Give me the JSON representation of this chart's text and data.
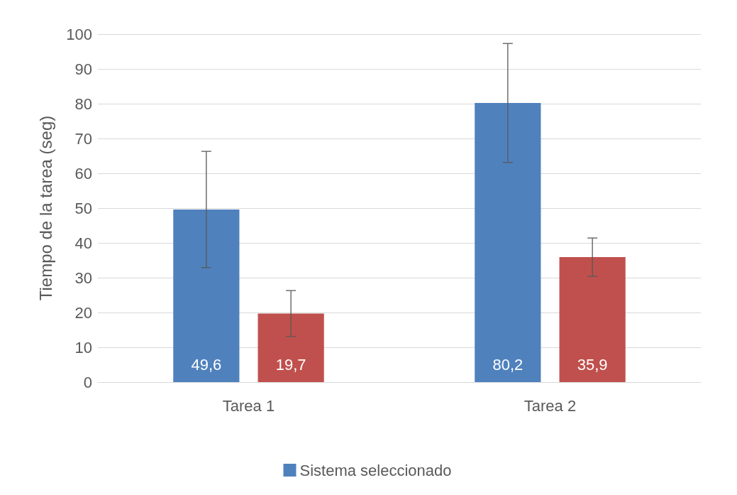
{
  "chart_data": {
    "type": "bar",
    "ylabel": "Tiempo de la tarea (seg)",
    "categories": [
      "Tarea 1",
      "Tarea 2"
    ],
    "series": [
      {
        "name": "Sistema seleccionado",
        "color": "#4f81bd",
        "values": [
          49.6,
          80.2
        ],
        "errors": [
          16.7,
          17.1
        ],
        "value_labels": [
          "49,6",
          "80,2"
        ]
      },
      {
        "color": "#c0504d",
        "values": [
          19.7,
          35.9
        ],
        "errors": [
          6.6,
          5.5
        ],
        "value_labels": [
          "19,7",
          "35,9"
        ]
      }
    ],
    "ylim": [
      0,
      100
    ],
    "yticks": [
      0,
      10,
      20,
      30,
      40,
      50,
      60,
      70,
      80,
      90,
      100
    ],
    "grid": "y",
    "legend": "bottom"
  }
}
